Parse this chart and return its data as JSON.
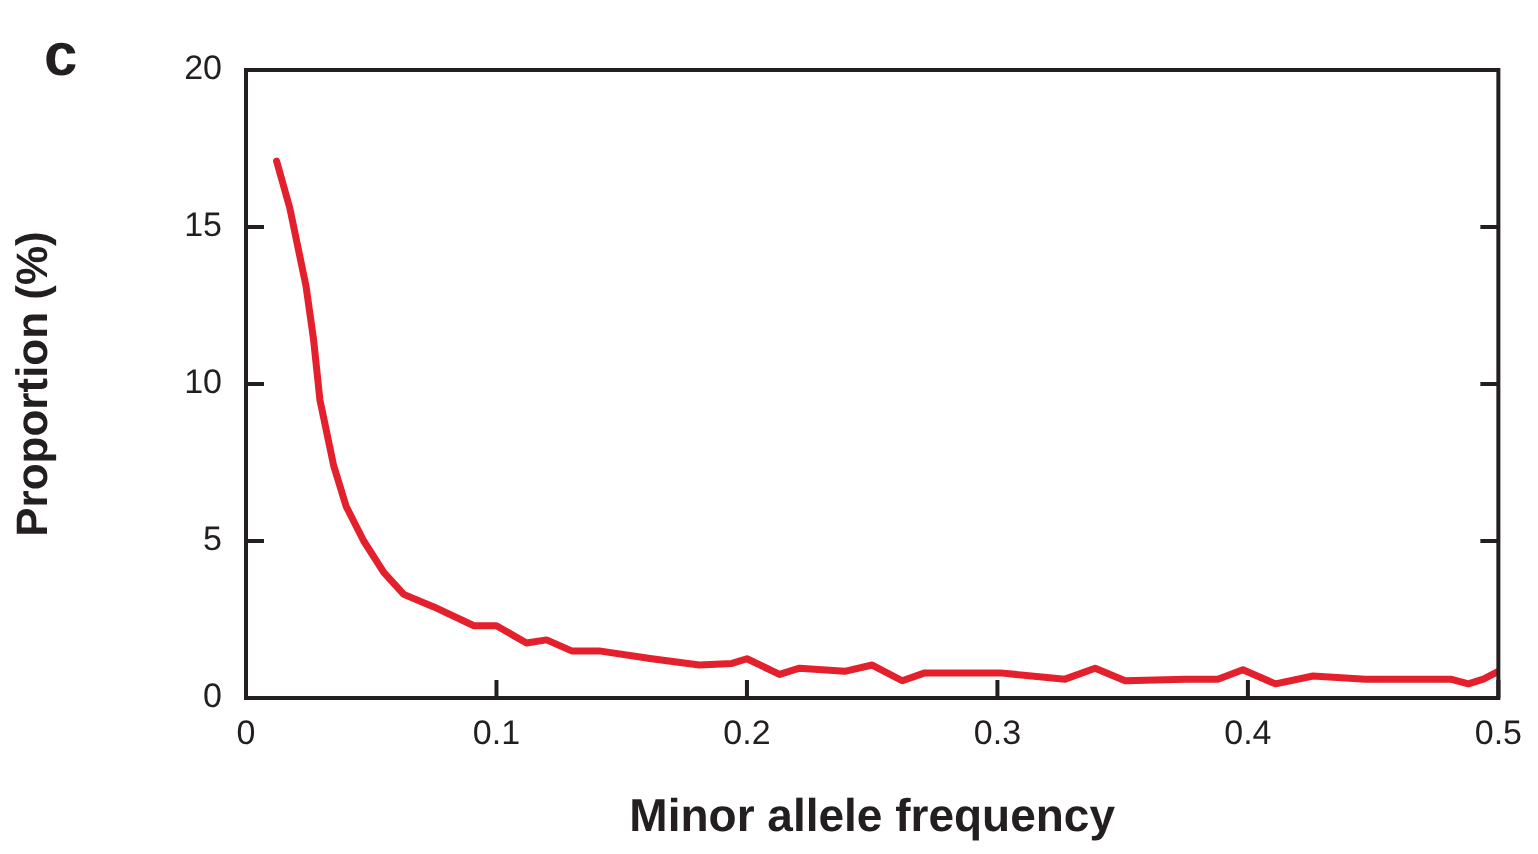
{
  "chart_data": {
    "type": "line",
    "xlabel": "Minor allele frequency",
    "ylabel": "Proportion (%)",
    "annotations": [
      "c"
    ],
    "x": [
      0.0122,
      0.0175,
      0.024,
      0.027,
      0.0295,
      0.035,
      0.04,
      0.047,
      0.055,
      0.063,
      0.075,
      0.091,
      0.1,
      0.112,
      0.12,
      0.13,
      0.141,
      0.162,
      0.181,
      0.194,
      0.2,
      0.213,
      0.221,
      0.239,
      0.25,
      0.262,
      0.271,
      0.301,
      0.327,
      0.339,
      0.351,
      0.375,
      0.388,
      0.398,
      0.411,
      0.426,
      0.447,
      0.481,
      0.488,
      0.494,
      0.5
    ],
    "series": [
      {
        "color": "#e3202c",
        "values": [
          17.1,
          15.6,
          13.1,
          11.4,
          9.5,
          7.4,
          6.1,
          5.0,
          4.0,
          3.3,
          2.9,
          2.3,
          2.3,
          1.75,
          1.85,
          1.5,
          1.5,
          1.25,
          1.05,
          1.1,
          1.25,
          0.75,
          0.95,
          0.85,
          1.05,
          0.55,
          0.8,
          0.8,
          0.6,
          0.95,
          0.55,
          0.6,
          0.6,
          0.9,
          0.45,
          0.7,
          0.6,
          0.6,
          0.45,
          0.6,
          0.85
        ]
      }
    ],
    "xlim": [
      0,
      0.5
    ],
    "xticks": [
      0,
      0.1,
      0.2,
      0.3,
      0.4,
      0.5
    ],
    "ylim": [
      0,
      20
    ],
    "yticks": [
      0,
      5,
      10,
      15,
      20
    ],
    "grid": false,
    "legend": false,
    "marker": "none",
    "line_style": "solid"
  }
}
